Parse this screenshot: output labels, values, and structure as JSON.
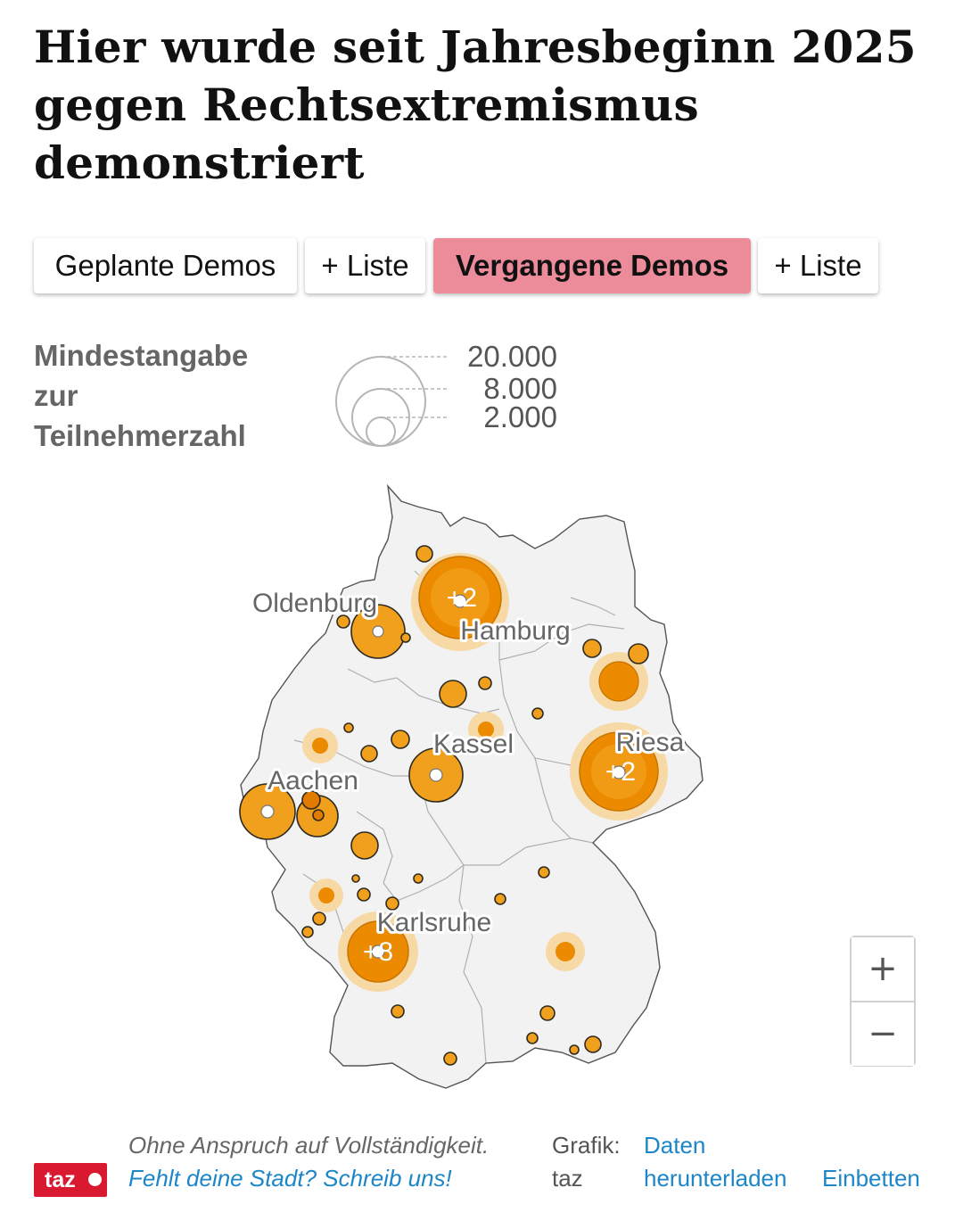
{
  "title": "Hier wurde seit Jahresbeginn 2025 gegen Rechtsextremismus demonstriert",
  "tabs": [
    {
      "label": "Geplante Demos",
      "active": false
    },
    {
      "label": "+ Liste",
      "active": false
    },
    {
      "label": "Vergangene Demos",
      "active": true
    },
    {
      "label": "+ Liste",
      "active": false
    }
  ],
  "legend": {
    "label": "Mindestangabe zur Teilnehmerzahl",
    "sizes": [
      "20.000",
      "8.000",
      "2.000"
    ]
  },
  "map": {
    "city_labels": [
      "Oldenburg",
      "Hamburg",
      "Kassel",
      "Riesa",
      "Aachen",
      "Karlsruhe"
    ],
    "cluster_labels": [
      "+2",
      "+2",
      "+8"
    ],
    "colors": {
      "marker": "#f0a01c",
      "cluster": "#ec8a00",
      "halo": "#f7d9a6",
      "land": "#f2f2f2"
    }
  },
  "zoom": {
    "in": "+",
    "out": "−"
  },
  "footer": {
    "logo": "taz",
    "disclaimer": "Ohne Anspruch auf Vollständigkeit.",
    "contact": "Fehlt deine Stadt? Schreib uns!",
    "credit": "Grafik: taz",
    "download": "Daten herunterladen",
    "embed": "Einbetten"
  }
}
